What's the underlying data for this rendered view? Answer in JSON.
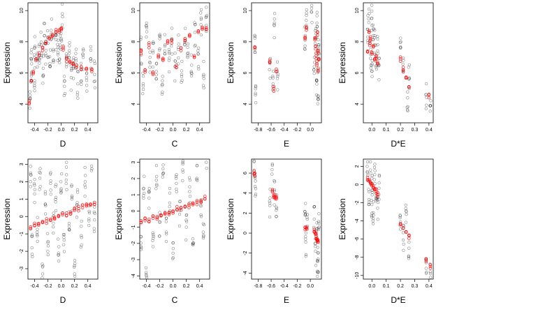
{
  "colors": {
    "observed": "#000000",
    "fitted": "#ff0000",
    "frame": "#000000"
  },
  "chart_data": [
    {
      "type": "scatter",
      "xlabel": "D",
      "ylabel": "Expression",
      "xlim": [
        -0.5,
        0.55
      ],
      "ylim": [
        2.8,
        10.5
      ],
      "xticks": [
        -0.4,
        -0.2,
        0.0,
        0.2,
        0.4
      ],
      "xtick_labels": [
        "-0.4",
        "-0.2",
        "0.0",
        "0.2",
        "0.4"
      ],
      "yticks": [
        4,
        6,
        8,
        10
      ],
      "ytick_labels": [
        "4",
        "6",
        "8",
        "10"
      ],
      "observed_x": [
        -0.47,
        -0.45,
        -0.45,
        -0.4,
        -0.4,
        -0.36,
        -0.33,
        -0.3,
        -0.27,
        -0.25,
        -0.23,
        -0.2,
        -0.17,
        -0.15,
        -0.12,
        -0.08,
        -0.05,
        -0.02,
        0.0,
        0.02,
        0.05,
        0.08,
        0.12,
        0.15,
        0.18,
        0.22,
        0.25,
        0.3,
        0.33,
        0.38,
        0.44,
        0.5
      ],
      "observed_y": [
        4.3,
        6.9,
        5.8,
        7.6,
        5.5,
        6.9,
        7.1,
        7.8,
        6.3,
        8.4,
        7.1,
        7.9,
        6.6,
        8.5,
        7.4,
        8.4,
        7.3,
        7.6,
        8.2,
        9.6,
        5.5,
        6.4,
        7.0,
        5.7,
        6.4,
        6.9,
        5.3,
        6.2,
        7.0,
        5.7,
        6.9,
        5.9
      ],
      "fitted_x": [
        -0.48,
        -0.45,
        -0.42,
        -0.38,
        -0.33,
        -0.28,
        -0.23,
        -0.18,
        -0.13,
        -0.08,
        -0.03,
        0.0,
        0.03,
        0.08,
        0.13,
        0.18,
        0.23,
        0.3,
        0.38,
        0.46
      ],
      "fitted_y": [
        4.2,
        5.5,
        6.1,
        6.9,
        7.3,
        7.6,
        7.9,
        8.2,
        8.4,
        8.6,
        8.6,
        8.8,
        7.6,
        6.9,
        6.7,
        6.6,
        6.5,
        6.4,
        6.3,
        6.2
      ]
    },
    {
      "type": "scatter",
      "xlabel": "C",
      "ylabel": "Expression",
      "xlim": [
        -0.5,
        0.55
      ],
      "ylim": [
        2.8,
        10.5
      ],
      "xticks": [
        -0.4,
        -0.2,
        0.0,
        0.2,
        0.4
      ],
      "xtick_labels": [
        "-0.4",
        "-0.2",
        "0.0",
        "0.2",
        "0.4"
      ],
      "yticks": [
        4,
        6,
        8,
        10
      ],
      "ytick_labels": [
        "4",
        "6",
        "8",
        "10"
      ],
      "observed_x": [
        -0.48,
        -0.45,
        -0.4,
        -0.35,
        -0.3,
        -0.25,
        -0.2,
        -0.16,
        -0.12,
        -0.06,
        -0.02,
        0.03,
        0.08,
        0.13,
        0.18,
        0.22,
        0.28,
        0.33,
        0.38,
        0.42,
        0.46,
        0.5
      ],
      "observed_y": [
        7.5,
        5.3,
        8.3,
        6.7,
        7.3,
        6.1,
        8.2,
        5.5,
        7.8,
        6.8,
        8.1,
        6.4,
        7.5,
        5.9,
        8.2,
        7.0,
        6.5,
        8.6,
        7.2,
        9.1,
        5.8,
        9.6
      ],
      "fitted_x": [
        -0.48,
        -0.42,
        -0.36,
        -0.3,
        -0.22,
        -0.15,
        -0.08,
        -0.02,
        0.05,
        0.12,
        0.18,
        0.25,
        0.32,
        0.38,
        0.44,
        0.5
      ],
      "fitted_y": [
        7.4,
        6.2,
        7.8,
        5.9,
        7.0,
        6.8,
        8.0,
        8.1,
        6.5,
        7.6,
        8.2,
        8.4,
        7.1,
        8.6,
        8.8,
        8.9
      ]
    },
    {
      "type": "scatter",
      "xlabel": "E",
      "ylabel": "Expression",
      "xlim": [
        -0.9,
        0.17
      ],
      "ylim": [
        2.8,
        10.5
      ],
      "xticks": [
        -0.8,
        -0.6,
        -0.4,
        -0.2,
        0.0
      ],
      "xtick_labels": [
        "-0.8",
        "-0.6",
        "-0.4",
        "-0.2",
        "0.0"
      ],
      "yticks": [
        4,
        6,
        8,
        10
      ],
      "ytick_labels": [
        "4",
        "6",
        "8",
        "10"
      ],
      "observed_x": [
        -0.85,
        -0.84,
        -0.62,
        -0.57,
        -0.55,
        -0.5,
        -0.08,
        -0.06,
        0.02,
        0.06,
        0.08,
        0.1,
        0.1,
        0.12,
        0.12,
        0.13
      ],
      "observed_y": [
        7.5,
        4.7,
        6.6,
        5.3,
        9.2,
        5.8,
        8.1,
        9.7,
        9.9,
        6.4,
        8.2,
        5.5,
        9.2,
        6.9,
        4.3,
        7.8
      ],
      "fitted_x": [
        -0.85,
        -0.62,
        -0.56,
        -0.52,
        -0.08,
        -0.06,
        0.07,
        0.08,
        0.09,
        0.1,
        0.11,
        0.12,
        0.12,
        0.13
      ],
      "fitted_y": [
        7.6,
        6.7,
        5.0,
        6.1,
        8.3,
        8.9,
        8.2,
        7.7,
        7.1,
        6.6,
        8.6,
        6.1,
        7.4,
        6.9
      ]
    },
    {
      "type": "scatter",
      "xlabel": "D*E",
      "ylabel": "Expression",
      "xlim": [
        -0.06,
        0.43
      ],
      "ylim": [
        2.8,
        10.5
      ],
      "xticks": [
        0.0,
        0.1,
        0.2,
        0.3,
        0.4
      ],
      "xtick_labels": [
        "0.0",
        "0.1",
        "0.2",
        "0.3",
        "0.4"
      ],
      "yticks": [
        4,
        6,
        8,
        10
      ],
      "ytick_labels": [
        "4",
        "6",
        "8",
        "10"
      ],
      "observed_x": [
        -0.03,
        -0.02,
        -0.01,
        0.0,
        0.0,
        0.01,
        0.02,
        0.03,
        0.04,
        0.05,
        0.2,
        0.22,
        0.25,
        0.26,
        0.38,
        0.41
      ],
      "observed_y": [
        8.8,
        10.1,
        7.2,
        9.5,
        6.1,
        8.4,
        7.8,
        6.9,
        7.4,
        6.5,
        7.6,
        6.1,
        4.4,
        5.6,
        4.6,
        3.9
      ],
      "fitted_x": [
        -0.03,
        -0.02,
        -0.015,
        -0.01,
        0.0,
        0.01,
        0.02,
        0.03,
        0.04,
        0.2,
        0.22,
        0.24,
        0.26,
        0.4
      ],
      "fitted_y": [
        7.4,
        8.6,
        7.9,
        8.2,
        7.3,
        7.7,
        6.9,
        7.1,
        6.6,
        6.9,
        6.2,
        5.7,
        5.1,
        4.6
      ]
    },
    {
      "type": "scatter",
      "xlabel": "D",
      "ylabel": "Expression",
      "xlim": [
        -0.5,
        0.55
      ],
      "ylim": [
        -3.6,
        3.3
      ],
      "xticks": [
        -0.4,
        -0.2,
        0.0,
        0.2,
        0.4
      ],
      "xtick_labels": [
        "-0.4",
        "-0.2",
        "0.0",
        "0.2",
        "0.4"
      ],
      "yticks": [
        -3,
        -2,
        -1,
        0,
        1,
        2,
        3
      ],
      "ytick_labels": [
        "-3",
        "-2",
        "-1",
        "0",
        "1",
        "2",
        "3"
      ],
      "observed_x": [
        -0.46,
        -0.44,
        -0.4,
        -0.36,
        -0.32,
        -0.28,
        -0.24,
        -0.2,
        -0.16,
        -0.12,
        -0.08,
        -0.04,
        0.0,
        0.04,
        0.08,
        0.12,
        0.16,
        0.2,
        0.24,
        0.3,
        0.36,
        0.42,
        0.46,
        0.5
      ],
      "observed_y": [
        2.5,
        -1.8,
        1.3,
        -0.9,
        2.2,
        -2.9,
        0.7,
        -1.5,
        1.9,
        -0.6,
        1.1,
        -2.1,
        1.6,
        -1.2,
        2.4,
        -0.4,
        1.0,
        -3.3,
        0.8,
        -1.1,
        2.0,
        0.3,
        3.3,
        -0.2
      ],
      "fitted_x": [
        -0.46,
        -0.4,
        -0.34,
        -0.28,
        -0.22,
        -0.16,
        -0.1,
        -0.04,
        0.02,
        0.08,
        0.14,
        0.2,
        0.26,
        0.32,
        0.38,
        0.44,
        0.5
      ],
      "fitted_y": [
        -0.6,
        -0.5,
        -0.4,
        -0.35,
        -0.25,
        -0.15,
        -0.05,
        0.0,
        0.1,
        0.2,
        0.25,
        0.35,
        0.45,
        0.5,
        0.6,
        0.65,
        0.7
      ]
    },
    {
      "type": "scatter",
      "xlabel": "C",
      "ylabel": "Expression",
      "xlim": [
        -0.5,
        0.55
      ],
      "ylim": [
        -4.2,
        3.2
      ],
      "xticks": [
        -0.4,
        -0.2,
        0.0,
        0.2,
        0.4
      ],
      "xtick_labels": [
        "-0.4",
        "-0.2",
        "0.0",
        "0.2",
        "0.4"
      ],
      "yticks": [
        -4,
        -3,
        -2,
        -1,
        0,
        1,
        2,
        3
      ],
      "ytick_labels": [
        "-4",
        "-3",
        "-2",
        "-1",
        "0",
        "1",
        "2",
        "3"
      ],
      "observed_x": [
        -0.48,
        -0.44,
        -0.4,
        -0.36,
        -0.3,
        -0.25,
        -0.2,
        -0.15,
        -0.1,
        -0.05,
        0.0,
        0.05,
        0.1,
        0.15,
        0.2,
        0.25,
        0.3,
        0.36,
        0.42,
        0.46,
        0.5
      ],
      "observed_y": [
        -1.6,
        1.4,
        -4.0,
        0.8,
        -2.2,
        1.9,
        -0.7,
        2.6,
        -1.3,
        0.5,
        -2.6,
        1.7,
        -0.2,
        2.4,
        -1.0,
        1.2,
        -2.0,
        2.8,
        0.3,
        -1.5,
        3.0
      ],
      "fitted_x": [
        -0.48,
        -0.42,
        -0.36,
        -0.3,
        -0.24,
        -0.18,
        -0.12,
        -0.06,
        0.0,
        0.06,
        0.12,
        0.18,
        0.24,
        0.3,
        0.36,
        0.42,
        0.48
      ],
      "fitted_y": [
        -0.7,
        -0.6,
        -0.5,
        -0.45,
        -0.35,
        -0.3,
        -0.2,
        -0.1,
        0.0,
        0.1,
        0.2,
        0.25,
        0.35,
        0.45,
        0.55,
        0.65,
        0.75
      ]
    },
    {
      "type": "scatter",
      "xlabel": "E",
      "ylabel": "Expression",
      "xlim": [
        -0.9,
        0.17
      ],
      "ylim": [
        -4.6,
        7.4
      ],
      "xticks": [
        -0.8,
        -0.6,
        -0.4,
        -0.2,
        0.0
      ],
      "xtick_labels": [
        "-0.8",
        "-0.6",
        "-0.4",
        "-0.2",
        "0.0"
      ],
      "yticks": [
        -4,
        -2,
        0,
        2,
        4,
        6
      ],
      "ytick_labels": [
        "-4",
        "-2",
        "0",
        "2",
        "4",
        "6"
      ],
      "observed_x": [
        -0.86,
        -0.84,
        -0.62,
        -0.58,
        -0.55,
        -0.52,
        -0.08,
        -0.07,
        -0.05,
        0.06,
        0.08,
        0.1,
        0.11,
        0.12,
        0.13
      ],
      "observed_y": [
        6.3,
        5.2,
        3.0,
        6.9,
        4.2,
        2.6,
        1.8,
        -0.9,
        0.6,
        1.4,
        -1.8,
        0.4,
        -3.9,
        -2.6,
        1.0
      ],
      "fitted_x": [
        -0.86,
        -0.85,
        -0.58,
        -0.56,
        -0.54,
        -0.52,
        -0.08,
        -0.06,
        0.06,
        0.08,
        0.09,
        0.1,
        0.11,
        0.12
      ],
      "fitted_y": [
        5.9,
        5.7,
        4.1,
        3.8,
        3.6,
        3.4,
        0.6,
        0.4,
        0.1,
        -0.1,
        -0.3,
        -0.5,
        -0.7,
        -0.9
      ]
    },
    {
      "type": "scatter",
      "xlabel": "D*E",
      "ylabel": "Expression",
      "xlim": [
        -0.06,
        0.43
      ],
      "ylim": [
        -10.4,
        2.8
      ],
      "xticks": [
        0.0,
        0.1,
        0.2,
        0.3,
        0.4
      ],
      "xtick_labels": [
        "0.0",
        "0.1",
        "0.2",
        "0.3",
        "0.4"
      ],
      "yticks": [
        -10,
        -8,
        -6,
        -4,
        -2,
        0,
        2
      ],
      "ytick_labels": [
        "-10",
        "-8",
        "-6",
        "-4",
        "-2",
        "0",
        "2"
      ],
      "observed_x": [
        -0.03,
        -0.02,
        -0.01,
        0.0,
        0.0,
        0.01,
        0.02,
        0.03,
        0.04,
        0.05,
        0.2,
        0.22,
        0.24,
        0.26,
        0.38,
        0.41
      ],
      "observed_y": [
        2.5,
        -0.8,
        1.6,
        -2.2,
        0.7,
        -3.1,
        1.1,
        -1.5,
        -2.6,
        -0.4,
        -4.1,
        -6.1,
        -2.9,
        -7.0,
        -8.6,
        -9.6
      ],
      "fitted_x": [
        -0.03,
        -0.02,
        -0.01,
        0.0,
        0.01,
        0.02,
        0.03,
        0.04,
        0.2,
        0.22,
        0.24,
        0.26,
        0.38,
        0.41
      ],
      "fitted_y": [
        0.8,
        0.5,
        0.2,
        0.0,
        -0.3,
        -0.5,
        -0.8,
        -1.1,
        -4.4,
        -4.8,
        -5.2,
        -5.6,
        -8.3,
        -9.0
      ]
    }
  ]
}
